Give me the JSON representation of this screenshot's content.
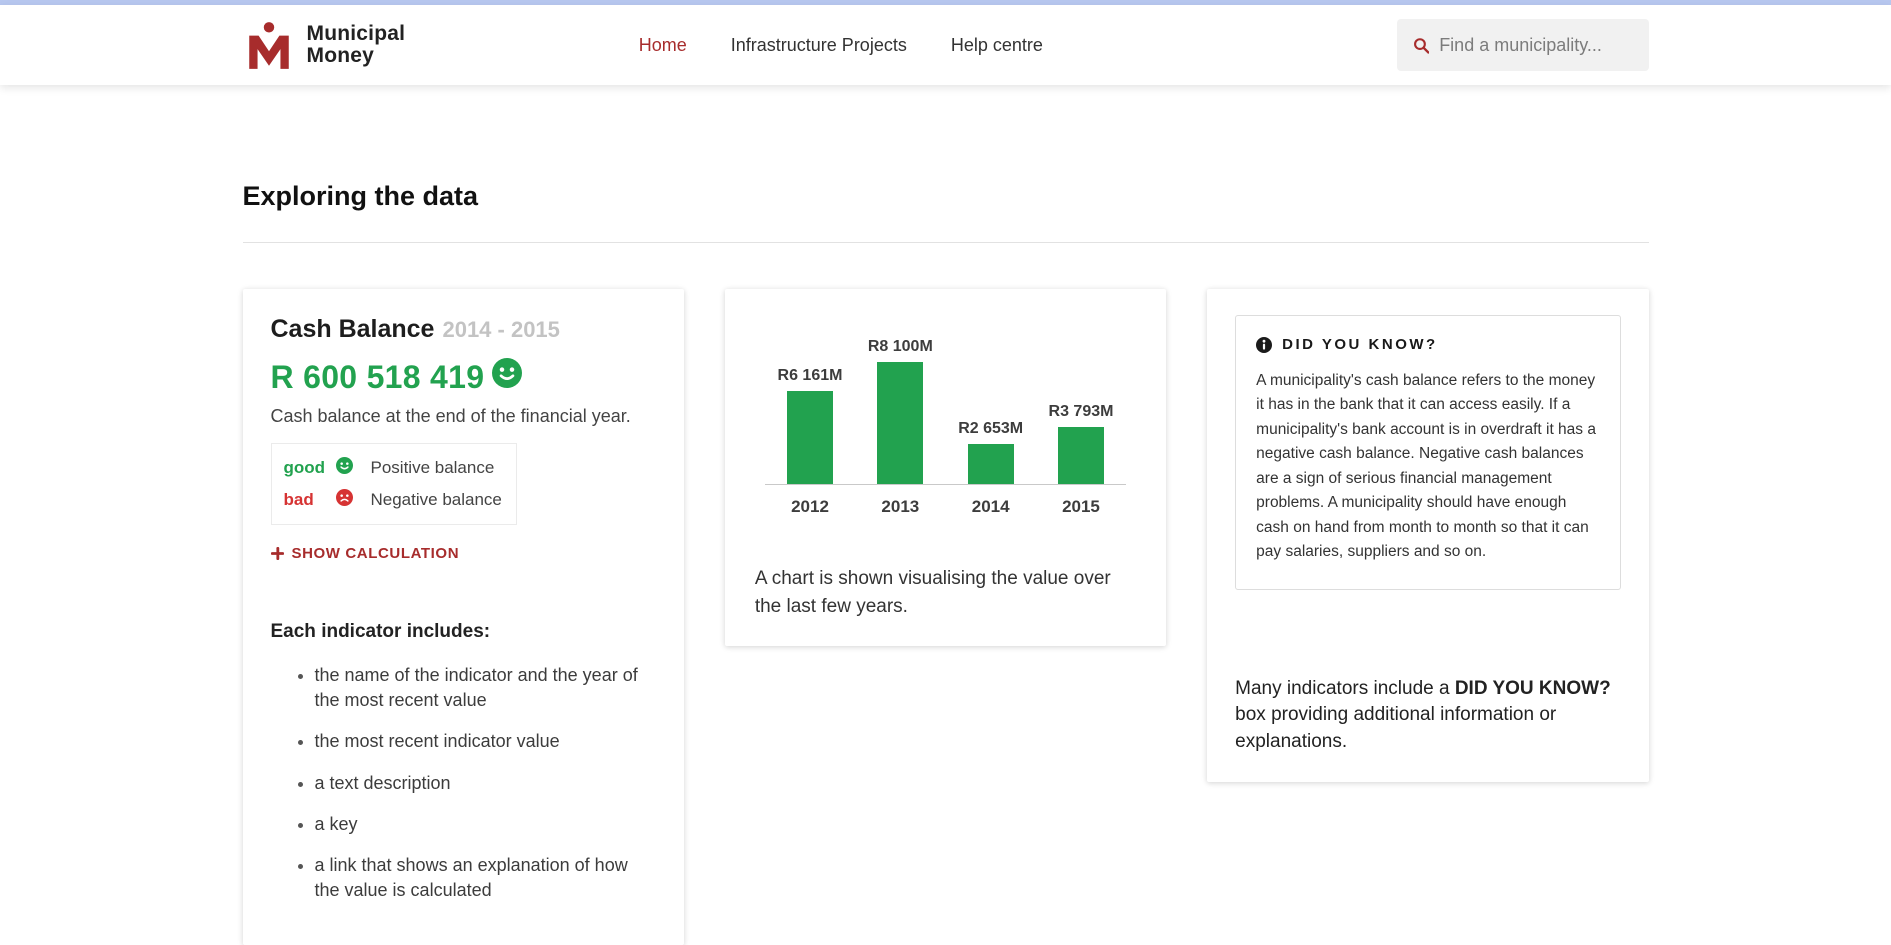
{
  "header": {
    "brand": {
      "line1": "Municipal",
      "line2": "Money"
    },
    "nav": [
      {
        "label": "Home",
        "active": true
      },
      {
        "label": "Infrastructure Projects",
        "active": false
      },
      {
        "label": "Help centre",
        "active": false
      }
    ],
    "search": {
      "placeholder": "Find a municipality..."
    }
  },
  "page": {
    "title": "Exploring the data"
  },
  "indicator_card": {
    "title": "Cash Balance",
    "period": "2014 - 2015",
    "value": "R 600 518 419",
    "description": "Cash balance at the end of the financial year.",
    "key": [
      {
        "rating": "good",
        "label": "Positive balance"
      },
      {
        "rating": "bad",
        "label": "Negative balance"
      }
    ],
    "show_calculation_label": "SHOW CALCULATION",
    "includes_heading": "Each indicator includes:",
    "includes_items": [
      "the name of the indicator and the year of the most recent value",
      "the most recent indicator value",
      "a text description",
      "a key",
      "a link that shows an explanation of how the value is calculated"
    ]
  },
  "chart_card": {
    "caption": "A chart is shown visualising the value over the last few years."
  },
  "chart_data": {
    "type": "bar",
    "categories": [
      "2012",
      "2013",
      "2014",
      "2015"
    ],
    "values": [
      6161,
      8100,
      2653,
      3793
    ],
    "bar_labels": [
      "R6 161M",
      "R8 100M",
      "R2 653M",
      "R3 793M"
    ],
    "unit": "ZAR millions",
    "ylim": [
      0,
      8100
    ],
    "bar_color": "#22a24f",
    "grid": false,
    "legend": false
  },
  "did_you_know_card": {
    "box_title": "DID YOU KNOW?",
    "box_body": "A municipality's cash balance refers to the money it has in the bank that it can access easily. If a municipality's bank account is in overdraft it has a negative cash balance. Negative cash balances are a sign of serious financial management problems. A municipality should have enough cash on hand from month to month so that it can pay salaries, suppliers and so on.",
    "note_prefix": "Many indicators include a ",
    "note_bold": "DID YOU KNOW?",
    "note_suffix": " box providing additional information or explanations."
  },
  "colors": {
    "brand_red": "#a72c2c",
    "positive_green": "#22a24f",
    "negative_red": "#d63333",
    "topbar_blue": "#b7c7ef"
  }
}
